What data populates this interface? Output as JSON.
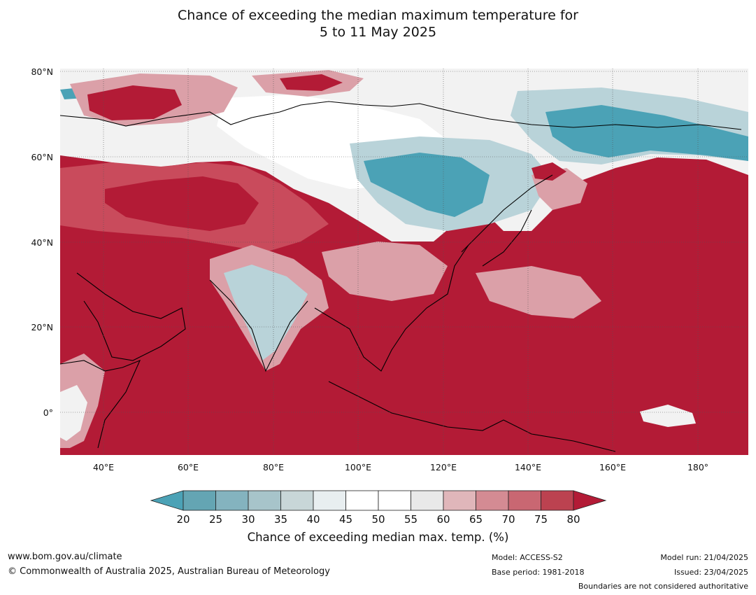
{
  "title": {
    "line1": "Chance of exceeding the median maximum temperature for",
    "line2": "5 to 11 May 2025"
  },
  "map": {
    "lat_labels": [
      "80°N",
      "60°N",
      "40°N",
      "20°N",
      "0°"
    ],
    "lon_labels": [
      "40°E",
      "60°E",
      "80°E",
      "100°E",
      "120°E",
      "140°E",
      "160°E",
      "180°"
    ],
    "colors": {
      "very_warm": "#b31b36",
      "warm_mid": "#c94b5c",
      "warm_light": "#dba0a8",
      "neutral": "#f2f2f2",
      "cool_light": "#b9d3d9",
      "cool": "#4ba2b6"
    }
  },
  "colorbar": {
    "ticks": [
      "20",
      "25",
      "30",
      "35",
      "40",
      "45",
      "50",
      "55",
      "60",
      "65",
      "70",
      "75",
      "80"
    ],
    "colors": [
      "#64a5b3",
      "#84b3bf",
      "#a7c4ca",
      "#c8d6d8",
      "#e8eef0",
      "#ffffff",
      "#ffffff",
      "#e9e9e9",
      "#e0b6ba",
      "#d48b93",
      "#c96772",
      "#bc4250"
    ],
    "low_arrow_color": "#4ba2b6",
    "high_arrow_color": "#b31b36",
    "label": "Chance of exceeding median max. temp. (%)"
  },
  "footer": {
    "website": "www.bom.gov.au/climate",
    "copyright": "© Commonwealth of Australia 2025, Australian Bureau of Meteorology",
    "model": "Model: ACCESS-S2",
    "base_period": "Base period: 1981-2018",
    "model_run": "Model run: 21/04/2025",
    "issued": "Issued: 23/04/2025",
    "disclaimer": "Boundaries are not considered authoritative"
  }
}
